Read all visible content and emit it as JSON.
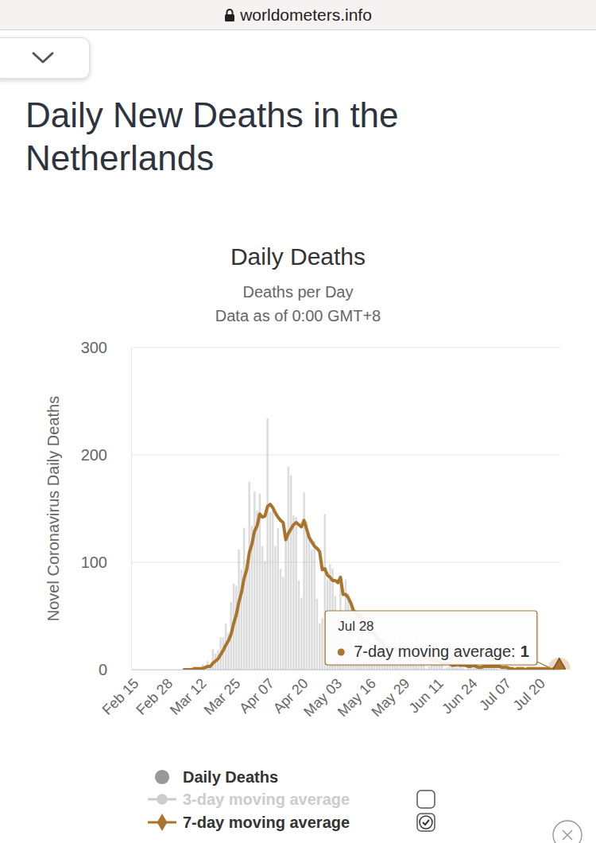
{
  "page": {
    "url": "worldometers.info",
    "heading": "Daily New Deaths in the Netherlands"
  },
  "chart_data": {
    "type": "bar",
    "title": "Daily Deaths",
    "subtitle": "Deaths per Day",
    "note": "Data as of 0:00 GMT+8",
    "y_label": "Novel Coronavirus Daily Deaths",
    "ylim": [
      0,
      300
    ],
    "yticks": [
      0,
      100,
      200,
      300
    ],
    "grid": true,
    "legend": "bottom",
    "tooltip": {
      "title": "Jul 28",
      "label": "7-day moving average:",
      "value": 1
    },
    "categories": [
      "Feb 15",
      null,
      null,
      null,
      null,
      null,
      null,
      null,
      null,
      null,
      null,
      null,
      null,
      "Feb 28",
      null,
      null,
      null,
      null,
      null,
      null,
      null,
      null,
      null,
      null,
      null,
      null,
      "Mar 12",
      null,
      null,
      null,
      null,
      null,
      null,
      null,
      null,
      null,
      null,
      null,
      null,
      "Mar 25",
      null,
      null,
      null,
      null,
      null,
      null,
      null,
      null,
      null,
      null,
      null,
      null,
      "Apr 07",
      null,
      null,
      null,
      null,
      null,
      null,
      null,
      null,
      null,
      null,
      null,
      null,
      "Apr 20",
      null,
      null,
      null,
      null,
      null,
      null,
      null,
      null,
      null,
      null,
      null,
      null,
      "May 03",
      null,
      null,
      null,
      null,
      null,
      null,
      null,
      null,
      null,
      null,
      null,
      null,
      "May 16",
      null,
      null,
      null,
      null,
      null,
      null,
      null,
      null,
      null,
      null,
      null,
      null,
      "May 29",
      null,
      null,
      null,
      null,
      null,
      null,
      null,
      null,
      null,
      null,
      null,
      null,
      "Jun 11",
      null,
      null,
      null,
      null,
      null,
      null,
      null,
      null,
      null,
      null,
      null,
      null,
      "Jun 24",
      null,
      null,
      null,
      null,
      null,
      null,
      null,
      null,
      null,
      null,
      null,
      null,
      "Jul 07",
      null,
      null,
      null,
      null,
      null,
      null,
      null,
      null,
      null,
      null,
      null,
      null,
      "Jul 20",
      null,
      null,
      null,
      null,
      null,
      null,
      null,
      null
    ],
    "series": [
      {
        "name": "Daily Deaths",
        "type": "bar",
        "marker": "circle",
        "color": "#999999",
        "values": [
          0,
          0,
          0,
          0,
          0,
          0,
          0,
          0,
          0,
          0,
          0,
          0,
          0,
          0,
          0,
          0,
          0,
          0,
          0,
          0,
          1,
          0,
          0,
          0,
          3,
          1,
          0,
          5,
          2,
          8,
          4,
          19,
          15,
          18,
          30,
          30,
          43,
          34,
          63,
          80,
          78,
          112,
          93,
          132,
          93,
          175,
          134,
          166,
          148,
          164,
          115,
          101,
          234,
          147,
          148,
          115,
          132,
          94,
          86,
          122,
          189,
          181,
          144,
          142,
          83,
          67,
          165,
          138,
          123,
          112,
          120,
          66,
          43,
          48,
          145,
          84,
          98,
          94,
          69,
          26,
          86,
          36,
          84,
          71,
          63,
          18,
          16,
          54,
          52,
          28,
          53,
          27,
          10,
          14,
          21,
          33,
          27,
          13,
          23,
          11,
          8,
          26,
          15,
          32,
          28,
          20,
          5,
          6,
          7,
          29,
          10,
          12,
          11,
          1,
          3,
          9,
          13,
          6,
          5,
          6,
          1,
          2,
          7,
          3,
          2,
          11,
          3,
          2,
          0,
          2,
          3,
          6,
          4,
          0,
          1,
          4,
          3,
          4,
          6,
          2,
          1,
          0,
          0,
          0,
          2,
          1,
          0,
          0,
          1,
          0,
          1,
          0,
          2,
          2,
          1,
          0,
          0,
          1,
          0,
          0,
          1,
          0,
          2,
          1,
          2
        ]
      },
      {
        "name": "3-day moving average",
        "type": "line",
        "marker": "circle",
        "color": "#cccccc",
        "values": [
          null,
          null,
          null,
          null,
          null,
          null,
          null,
          null,
          null,
          null,
          null,
          null,
          null,
          null,
          null,
          null,
          null,
          null,
          null,
          null,
          null,
          null,
          null,
          null,
          null,
          null,
          null,
          null,
          null,
          null,
          null,
          null,
          null,
          null,
          null,
          null,
          null,
          null,
          null,
          null,
          null,
          null,
          null,
          null,
          null,
          null,
          null,
          null,
          null,
          null,
          null,
          null,
          null,
          null,
          null,
          null,
          null,
          null,
          null,
          null,
          null,
          null,
          null,
          null,
          null,
          null,
          null,
          null,
          null,
          null,
          null,
          null,
          null,
          null,
          null,
          null,
          null,
          null,
          null,
          null,
          null,
          null,
          null,
          null,
          null,
          null,
          null,
          null,
          null,
          null,
          null,
          null,
          null,
          null,
          null,
          null,
          null,
          null,
          null,
          null,
          null,
          null,
          null,
          null,
          null,
          null,
          null,
          null,
          null,
          null,
          null,
          null,
          null,
          null,
          null,
          null,
          null,
          null,
          null,
          null,
          null,
          null,
          null,
          null,
          null,
          null,
          null,
          null,
          null,
          null,
          null,
          null,
          null,
          null,
          null,
          null,
          null,
          null,
          null,
          null,
          null,
          null,
          null,
          null,
          null,
          null,
          null,
          null,
          null,
          null,
          null,
          null,
          null,
          null,
          null,
          null,
          null,
          null,
          null,
          null,
          null,
          null,
          null,
          null,
          null
        ]
      },
      {
        "name": "7-day moving average",
        "type": "line",
        "marker": "diamond",
        "color": "#a9742c",
        "values": [
          null,
          null,
          null,
          null,
          null,
          null,
          null,
          null,
          null,
          null,
          null,
          null,
          null,
          null,
          null,
          null,
          null,
          null,
          null,
          null,
          0,
          0,
          0,
          0,
          1,
          1,
          1,
          1,
          2,
          3,
          3,
          6,
          8,
          10,
          14,
          18,
          23,
          27,
          33,
          43,
          51,
          63,
          72,
          85,
          93,
          109,
          117,
          129,
          134,
          145,
          142,
          143,
          152,
          154,
          151,
          146,
          142,
          139,
          137,
          121,
          127,
          131,
          135,
          137,
          135,
          133,
          139,
          131,
          123,
          119,
          115,
          113,
          110,
          93,
          94,
          88,
          86,
          83,
          83,
          81,
          86,
          70,
          70,
          67,
          62,
          55,
          53,
          49,
          51,
          43,
          41,
          35,
          34,
          34,
          29,
          27,
          26,
          21,
          20,
          20,
          19,
          20,
          18,
          18,
          20,
          20,
          19,
          19,
          16,
          18,
          15,
          13,
          11,
          11,
          10,
          11,
          8,
          8,
          7,
          6,
          6,
          6,
          6,
          4,
          4,
          5,
          4,
          4,
          4,
          3,
          3,
          4,
          3,
          2,
          2,
          3,
          3,
          3,
          3,
          3,
          3,
          3,
          2,
          2,
          2,
          1,
          1,
          0,
          1,
          1,
          1,
          0,
          1,
          1,
          1,
          1,
          1,
          1,
          1,
          1,
          0,
          0,
          1,
          1,
          1
        ]
      }
    ]
  }
}
